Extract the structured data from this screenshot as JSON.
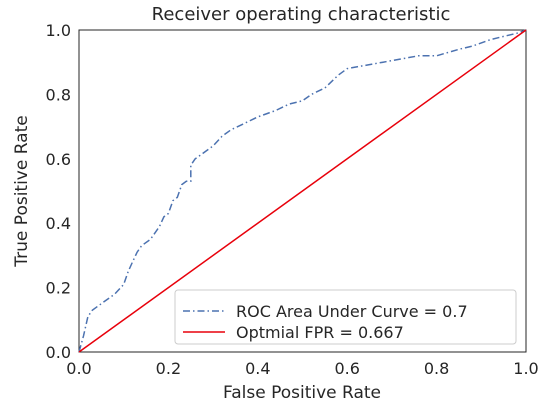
{
  "chart_data": {
    "type": "line",
    "title": "Receiver operating characteristic",
    "xlabel": "False Positive Rate",
    "ylabel": "True Positive Rate",
    "xlim": [
      0.0,
      1.0
    ],
    "ylim": [
      0.0,
      1.0
    ],
    "xticks": [
      "0.0",
      "0.2",
      "0.4",
      "0.6",
      "0.8",
      "1.0"
    ],
    "yticks": [
      "0.0",
      "0.2",
      "0.4",
      "0.6",
      "0.8",
      "1.0"
    ],
    "grid": false,
    "legend_position": "lower-right",
    "series": [
      {
        "name": "ROC Area Under Curve = 0.7",
        "style": "dashdot",
        "color": "#4c72b0",
        "x": [
          0.0,
          0.01,
          0.02,
          0.03,
          0.05,
          0.08,
          0.1,
          0.11,
          0.12,
          0.13,
          0.14,
          0.16,
          0.18,
          0.19,
          0.2,
          0.21,
          0.22,
          0.23,
          0.24,
          0.25,
          0.25,
          0.26,
          0.27,
          0.3,
          0.32,
          0.34,
          0.37,
          0.4,
          0.44,
          0.47,
          0.5,
          0.52,
          0.55,
          0.58,
          0.6,
          0.64,
          0.68,
          0.72,
          0.76,
          0.8,
          0.85,
          0.88,
          0.92,
          0.95,
          0.98,
          1.0
        ],
        "y": [
          0.0,
          0.05,
          0.11,
          0.13,
          0.15,
          0.18,
          0.21,
          0.25,
          0.28,
          0.31,
          0.33,
          0.35,
          0.39,
          0.42,
          0.43,
          0.47,
          0.48,
          0.52,
          0.53,
          0.53,
          0.58,
          0.6,
          0.61,
          0.64,
          0.67,
          0.69,
          0.71,
          0.73,
          0.75,
          0.77,
          0.78,
          0.8,
          0.82,
          0.86,
          0.88,
          0.89,
          0.9,
          0.91,
          0.92,
          0.92,
          0.94,
          0.95,
          0.97,
          0.98,
          0.99,
          1.0
        ]
      },
      {
        "name": "Optmial FPR = 0.667",
        "style": "solid",
        "color": "#e8000b",
        "x": [
          0.0,
          1.0
        ],
        "y": [
          0.0,
          1.0
        ]
      }
    ]
  }
}
